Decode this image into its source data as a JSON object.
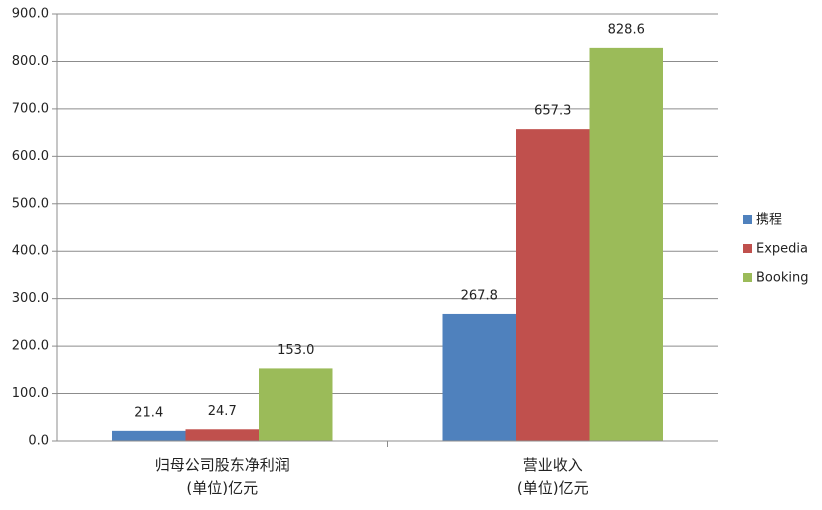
{
  "chart_data": {
    "type": "bar",
    "categories": [
      "归母公司股东净利润\n(单位)亿元",
      "营业收入\n(单位)亿元"
    ],
    "series": [
      {
        "name": "携程",
        "color": "#4f81bd",
        "values": [
          21.4,
          267.8
        ]
      },
      {
        "name": "Expedia",
        "color": "#c0504d",
        "values": [
          24.7,
          657.3
        ]
      },
      {
        "name": "Booking",
        "color": "#9bbb59",
        "values": [
          153,
          828.6
        ],
        "value_labels": [
          "153.0",
          "828.6"
        ]
      }
    ],
    "ylim": [
      0,
      900
    ],
    "yticks": [
      {
        "value": 0,
        "label": "0.0"
      },
      {
        "value": 100,
        "label": "100.0"
      },
      {
        "value": 200,
        "label": "200.0"
      },
      {
        "value": 300,
        "label": "300.0"
      },
      {
        "value": 400,
        "label": "400.0"
      },
      {
        "value": 500,
        "label": "500.0"
      },
      {
        "value": 600,
        "label": "600.0"
      },
      {
        "value": 700,
        "label": "700.0"
      },
      {
        "value": 800,
        "label": "800.0"
      },
      {
        "value": 900,
        "label": "900.0"
      }
    ],
    "grid": true,
    "legend": "right"
  }
}
